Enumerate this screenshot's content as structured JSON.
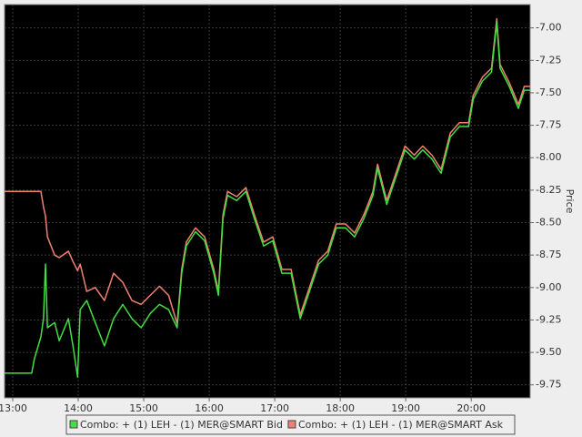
{
  "chart_data": {
    "type": "line",
    "y_label": "Price",
    "grid": true,
    "legend": "bottom",
    "xlim": [
      12.875,
      20.9
    ],
    "ylim": [
      -9.85,
      -6.82
    ],
    "xticks": [
      {
        "value": 13,
        "label": "13:00"
      },
      {
        "value": 14,
        "label": "14:00"
      },
      {
        "value": 15,
        "label": "15:00"
      },
      {
        "value": 16,
        "label": "16:00"
      },
      {
        "value": 17,
        "label": "17:00"
      },
      {
        "value": 18,
        "label": "18:00"
      },
      {
        "value": 19,
        "label": "19:00"
      },
      {
        "value": 20,
        "label": "20:00"
      }
    ],
    "yticks": [
      {
        "value": -7,
        "label": "-7.00"
      },
      {
        "value": -7.25,
        "label": "-7.25"
      },
      {
        "value": -7.5,
        "label": "-7.50"
      },
      {
        "value": -7.75,
        "label": "-7.75"
      },
      {
        "value": -8,
        "label": "-8.00"
      },
      {
        "value": -8.25,
        "label": "-8.25"
      },
      {
        "value": -8.5,
        "label": "-8.50"
      },
      {
        "value": -8.75,
        "label": "-8.75"
      },
      {
        "value": -9,
        "label": "-9.00"
      },
      {
        "value": -9.25,
        "label": "-9.25"
      },
      {
        "value": -9.5,
        "label": "-9.50"
      },
      {
        "value": -9.75,
        "label": "-9.75"
      }
    ],
    "x": [
      12.875,
      13.29,
      13.33,
      13.43,
      13.47,
      13.5,
      13.53,
      13.64,
      13.71,
      13.85,
      13.92,
      13.99,
      14.03,
      14.13,
      14.26,
      14.4,
      14.54,
      14.68,
      14.82,
      14.96,
      15.1,
      15.24,
      15.38,
      15.51,
      15.58,
      15.65,
      15.79,
      15.93,
      16.07,
      16.14,
      16.21,
      16.28,
      16.42,
      16.56,
      16.69,
      16.83,
      16.97,
      17.11,
      17.25,
      17.39,
      17.53,
      17.67,
      17.81,
      17.94,
      18.08,
      18.22,
      18.36,
      18.5,
      18.57,
      18.71,
      18.85,
      18.99,
      19.13,
      19.26,
      19.4,
      19.54,
      19.68,
      19.82,
      19.96,
      20.03,
      20.17,
      20.31,
      20.39,
      20.44,
      20.58,
      20.72,
      20.81,
      20.9
    ],
    "series": [
      {
        "name": "Combo:  + (1) LEH - (1) MER@SMART Ask",
        "color": "#f08070",
        "values": [
          -8.26,
          -8.26,
          -8.26,
          -8.26,
          -8.38,
          -8.45,
          -8.61,
          -8.75,
          -8.77,
          -8.72,
          -8.8,
          -8.87,
          -8.82,
          -9.03,
          -9.0,
          -9.1,
          -8.89,
          -8.96,
          -9.1,
          -9.13,
          -9.06,
          -8.99,
          -9.06,
          -9.28,
          -8.86,
          -8.65,
          -8.54,
          -8.61,
          -8.86,
          -9.03,
          -8.44,
          -8.26,
          -8.3,
          -8.23,
          -8.44,
          -8.65,
          -8.61,
          -8.86,
          -8.86,
          -9.21,
          -9.0,
          -8.79,
          -8.72,
          -8.51,
          -8.51,
          -8.58,
          -8.44,
          -8.26,
          -8.05,
          -8.33,
          -8.12,
          -7.91,
          -7.98,
          -7.91,
          -7.98,
          -8.09,
          -7.81,
          -7.73,
          -7.73,
          -7.52,
          -7.38,
          -7.31,
          -6.93,
          -7.28,
          -7.42,
          -7.59,
          -7.45,
          -7.45
        ]
      },
      {
        "name": "Combo:  + (1) LEH - (1) MER@SMART Bid",
        "color": "#40e040",
        "values": [
          -9.66,
          -9.66,
          -9.55,
          -9.38,
          -9.24,
          -8.82,
          -9.31,
          -9.27,
          -9.41,
          -9.24,
          -9.45,
          -9.69,
          -9.17,
          -9.1,
          -9.27,
          -9.45,
          -9.24,
          -9.13,
          -9.24,
          -9.31,
          -9.2,
          -9.13,
          -9.17,
          -9.31,
          -8.89,
          -8.68,
          -8.57,
          -8.64,
          -8.89,
          -9.06,
          -8.47,
          -8.29,
          -8.33,
          -8.26,
          -8.47,
          -8.68,
          -8.64,
          -8.89,
          -8.89,
          -9.24,
          -9.03,
          -8.82,
          -8.75,
          -8.54,
          -8.54,
          -8.61,
          -8.47,
          -8.29,
          -8.08,
          -8.36,
          -8.15,
          -7.94,
          -8.01,
          -7.94,
          -8.01,
          -8.12,
          -7.84,
          -7.76,
          -7.76,
          -7.55,
          -7.41,
          -7.34,
          -6.96,
          -7.31,
          -7.45,
          -7.62,
          -7.48,
          -7.48
        ]
      }
    ]
  }
}
